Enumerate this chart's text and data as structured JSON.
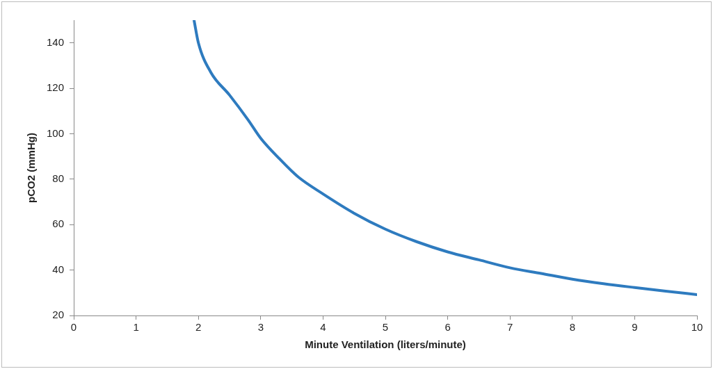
{
  "chart_data": {
    "type": "line",
    "xlabel": "Minute Ventilation (liters/minute)",
    "ylabel": "pCO2 (mmHg)",
    "series": [
      {
        "color": "#2e7bbf",
        "x": [
          1.93,
          2,
          2.2,
          2.5,
          2.8,
          3,
          3.3,
          3.6,
          4,
          4.5,
          5,
          5.5,
          6,
          6.5,
          7,
          7.5,
          8,
          8.5,
          9,
          9.5,
          10
        ],
        "values": [
          150,
          140,
          127,
          117,
          106,
          98,
          89,
          81,
          73.5,
          65,
          58,
          52.5,
          48,
          44.5,
          41,
          38.5,
          36,
          34,
          32.3,
          30.7,
          29.2
        ]
      }
    ],
    "xlim": [
      0,
      10
    ],
    "xticks": [
      0,
      1,
      2,
      3,
      4,
      5,
      6,
      7,
      8,
      9,
      10
    ],
    "ylim": [
      20,
      150
    ],
    "yticks": [
      20,
      40,
      60,
      80,
      100,
      120,
      140
    ],
    "grid": false,
    "legend": false,
    "marker": "none",
    "line_style": "solid"
  }
}
